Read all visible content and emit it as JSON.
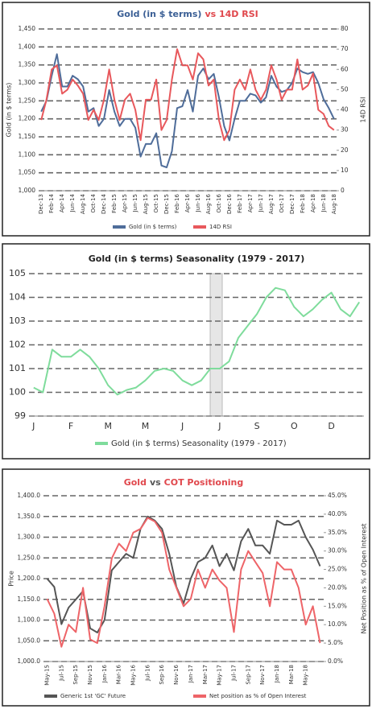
{
  "chart_data": [
    {
      "type": "line",
      "title": [
        {
          "text": "Gold (in $ terms)",
          "color": "#3b5f95"
        },
        {
          "text": "vs 14D RSI",
          "color": "#e0474c"
        }
      ],
      "ylabel": "Gold (in $ terms)",
      "y2label": "14D RSI",
      "categories": [
        "Dec-13",
        null,
        "Feb-14",
        null,
        "Apr-14",
        null,
        "Jun-14",
        null,
        "Aug-14",
        null,
        "Oct-14",
        null,
        "Dec-14",
        null,
        "Feb-15",
        null,
        "Apr-15",
        null,
        "Jun-15",
        null,
        "Aug-15",
        null,
        "Oct-15",
        null,
        "Dec-15",
        null,
        "Feb-16",
        null,
        "Apr-16",
        null,
        "Jun-16",
        null,
        "Aug-16",
        null,
        "Oct-16",
        null,
        "Dec-16",
        null,
        "Feb-17",
        null,
        "Apr-17",
        null,
        "Jun-17",
        null,
        "Aug-17",
        null,
        "Oct-17",
        null,
        "Dec-17",
        null,
        "Feb-18",
        null,
        "Apr-18",
        null,
        "Jun-18",
        null,
        "Aug-18"
      ],
      "series": [
        {
          "name": "Gold (in $ terms)",
          "color": "#4f6d9a",
          "axis": "y",
          "values": [
            1220,
            1250,
            1320,
            1380,
            1290,
            1290,
            1320,
            1310,
            1290,
            1220,
            1230,
            1180,
            1200,
            1280,
            1220,
            1180,
            1200,
            1200,
            1175,
            1095,
            1130,
            1130,
            1160,
            1070,
            1065,
            1110,
            1230,
            1235,
            1280,
            1220,
            1320,
            1340,
            1310,
            1325,
            1260,
            1180,
            1140,
            1200,
            1250,
            1250,
            1270,
            1265,
            1245,
            1260,
            1320,
            1290,
            1275,
            1280,
            1300,
            1340,
            1330,
            1325,
            1330,
            1300,
            1255,
            1230,
            1200
          ]
        },
        {
          "name": "14D RSI",
          "color": "#e8585c",
          "axis": "y2",
          "values": [
            35,
            45,
            60,
            62,
            48,
            50,
            55,
            52,
            48,
            35,
            40,
            35,
            45,
            60,
            45,
            35,
            45,
            48,
            40,
            25,
            45,
            45,
            55,
            30,
            35,
            55,
            70,
            62,
            62,
            55,
            68,
            65,
            52,
            55,
            35,
            25,
            30,
            50,
            55,
            50,
            60,
            50,
            45,
            50,
            62,
            55,
            45,
            50,
            50,
            65,
            50,
            52,
            58,
            40,
            38,
            32,
            30
          ]
        }
      ],
      "ylim": [
        1000,
        1450
      ],
      "yticks": [
        {
          "value": 1000,
          "label": "1,000"
        },
        {
          "value": 1050,
          "label": "1,050"
        },
        {
          "value": 1100,
          "label": "1,100"
        },
        {
          "value": 1150,
          "label": "1,150"
        },
        {
          "value": 1200,
          "label": "1,200"
        },
        {
          "value": 1250,
          "label": "1,250"
        },
        {
          "value": 1300,
          "label": "1,300"
        },
        {
          "value": 1350,
          "label": "1,350"
        },
        {
          "value": 1400,
          "label": "1,400"
        },
        {
          "value": 1450,
          "label": "1,450"
        }
      ],
      "y2lim": [
        0,
        80
      ],
      "y2ticks": [
        0,
        10,
        20,
        30,
        40,
        50,
        60,
        70,
        80
      ],
      "ytick_color": "#3b5f95",
      "y2tick_color": "#e0474c",
      "grid": true,
      "legend": "bottom"
    },
    {
      "type": "line",
      "title": [
        {
          "text": "Gold (in $ terms) Seasonality (1979 - 2017)",
          "color": "#222"
        }
      ],
      "categories": [
        "J",
        null,
        null,
        null,
        "F",
        null,
        null,
        null,
        "M",
        null,
        null,
        null,
        "M",
        null,
        null,
        null,
        "J",
        null,
        null,
        null,
        "J",
        null,
        null,
        null,
        "S",
        null,
        null,
        null,
        "O",
        null,
        null,
        null,
        "D",
        null,
        null,
        null
      ],
      "series": [
        {
          "name": "Gold (in $ terms) Seasonality (1979 - 2017)",
          "color": "#7fdc9c",
          "axis": "y",
          "values": [
            100.2,
            100.0,
            101.8,
            101.5,
            101.5,
            101.8,
            101.5,
            101.0,
            100.3,
            99.9,
            100.1,
            100.2,
            100.5,
            100.9,
            101.0,
            100.9,
            100.5,
            100.3,
            100.5,
            101.0,
            101.0,
            101.3,
            102.3,
            102.8,
            103.3,
            104.0,
            104.4,
            104.3,
            103.6,
            103.2,
            103.5,
            103.9,
            104.2,
            103.5,
            103.2,
            103.8
          ]
        }
      ],
      "ylim": [
        99,
        105
      ],
      "yticks": [
        99,
        100,
        101,
        102,
        103,
        104,
        105
      ],
      "ytick_color": "#5cc47e",
      "grid": true,
      "legend": "bottom"
    },
    {
      "type": "line",
      "title": [
        {
          "text": "Gold",
          "color": "#e0474c"
        },
        {
          "text": "vs",
          "color": "#555"
        },
        {
          "text": "COT Positioning",
          "color": "#e0474c"
        }
      ],
      "ylabel": "Price",
      "y2label": "Net Position as % of Open Interest",
      "categories": [
        "May-15",
        null,
        "Jul-15",
        null,
        "Sep-15",
        null,
        "Nov-15",
        null,
        "Jan-16",
        null,
        "Mar-16",
        null,
        "May-16",
        null,
        "Jul-16",
        null,
        "Sep-16",
        null,
        "Nov-16",
        null,
        "Jan-17",
        null,
        "Mar-17",
        null,
        "May-17",
        null,
        "Jul-17",
        null,
        "Sep-17",
        null,
        "Nov-17",
        null,
        "Jan-18",
        null,
        "Mar-18",
        null,
        "May-18",
        null,
        null
      ],
      "series": [
        {
          "name": "Generic 1st 'GC' Future",
          "color": "#555555",
          "axis": "y",
          "values": [
            1200,
            1180,
            1090,
            1130,
            1150,
            1170,
            1080,
            1070,
            1100,
            1220,
            1240,
            1260,
            1250,
            1320,
            1350,
            1340,
            1320,
            1260,
            1180,
            1140,
            1200,
            1240,
            1250,
            1280,
            1230,
            1260,
            1220,
            1290,
            1320,
            1280,
            1280,
            1260,
            1340,
            1330,
            1330,
            1340,
            1300,
            1270,
            1230
          ]
        },
        {
          "name": "Net position as % of Open Interest",
          "color": "#ee6468",
          "axis": "y2",
          "values": [
            17,
            13,
            4,
            10,
            8,
            20,
            6,
            5,
            15,
            28,
            32,
            30,
            35,
            36,
            39,
            38,
            35,
            25,
            20,
            15,
            17,
            25,
            20,
            25,
            22,
            20,
            8,
            25,
            30,
            27,
            24,
            15,
            27,
            25,
            25,
            20,
            10,
            15,
            5
          ]
        }
      ],
      "ylim": [
        1000,
        1400
      ],
      "yticks": [
        {
          "value": 1000,
          "label": "1,000.0"
        },
        {
          "value": 1050,
          "label": "1,050.0"
        },
        {
          "value": 1100,
          "label": "1,100.0"
        },
        {
          "value": 1150,
          "label": "1,150.0"
        },
        {
          "value": 1200,
          "label": "1,200.0"
        },
        {
          "value": 1250,
          "label": "1,250.0"
        },
        {
          "value": 1300,
          "label": "1,300.0"
        },
        {
          "value": 1350,
          "label": "1,350.0"
        },
        {
          "value": 1400,
          "label": "1,400.0"
        }
      ],
      "y2lim": [
        0,
        45
      ],
      "y2ticks": [
        {
          "value": 0,
          "label": "0.0%"
        },
        {
          "value": 5,
          "label": "5.0%"
        },
        {
          "value": 10,
          "label": "10.0%"
        },
        {
          "value": 15,
          "label": "15.0%"
        },
        {
          "value": 20,
          "label": "20.0%"
        },
        {
          "value": 25,
          "label": "25.0%"
        },
        {
          "value": 30,
          "label": "30.0%"
        },
        {
          "value": 35,
          "label": "35.0%"
        },
        {
          "value": 40,
          "label": "40.0%"
        },
        {
          "value": 45,
          "label": "45.0%"
        }
      ],
      "ytick_color": "#444",
      "y2tick_color": "#e0474c",
      "grid": true,
      "legend": "bottom"
    }
  ]
}
